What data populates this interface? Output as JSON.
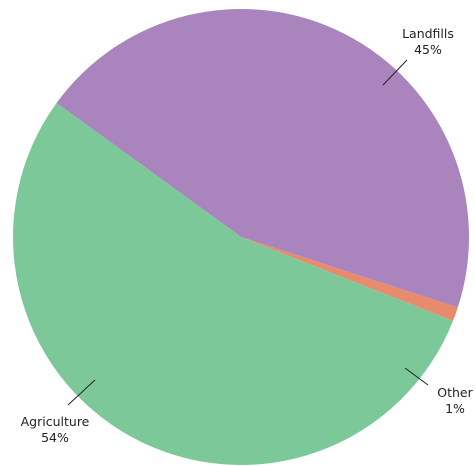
{
  "chart_data": {
    "type": "pie",
    "slices": [
      {
        "label": "Landfills",
        "value": 45,
        "pct_text": "45%",
        "color": "#AA85BD"
      },
      {
        "label": "Other",
        "value": 1,
        "pct_text": "1%",
        "color": "#E88A6C"
      },
      {
        "label": "Agriculture",
        "value": 54,
        "pct_text": "54%",
        "color": "#7CC898"
      }
    ],
    "title": "",
    "legend": "none"
  }
}
